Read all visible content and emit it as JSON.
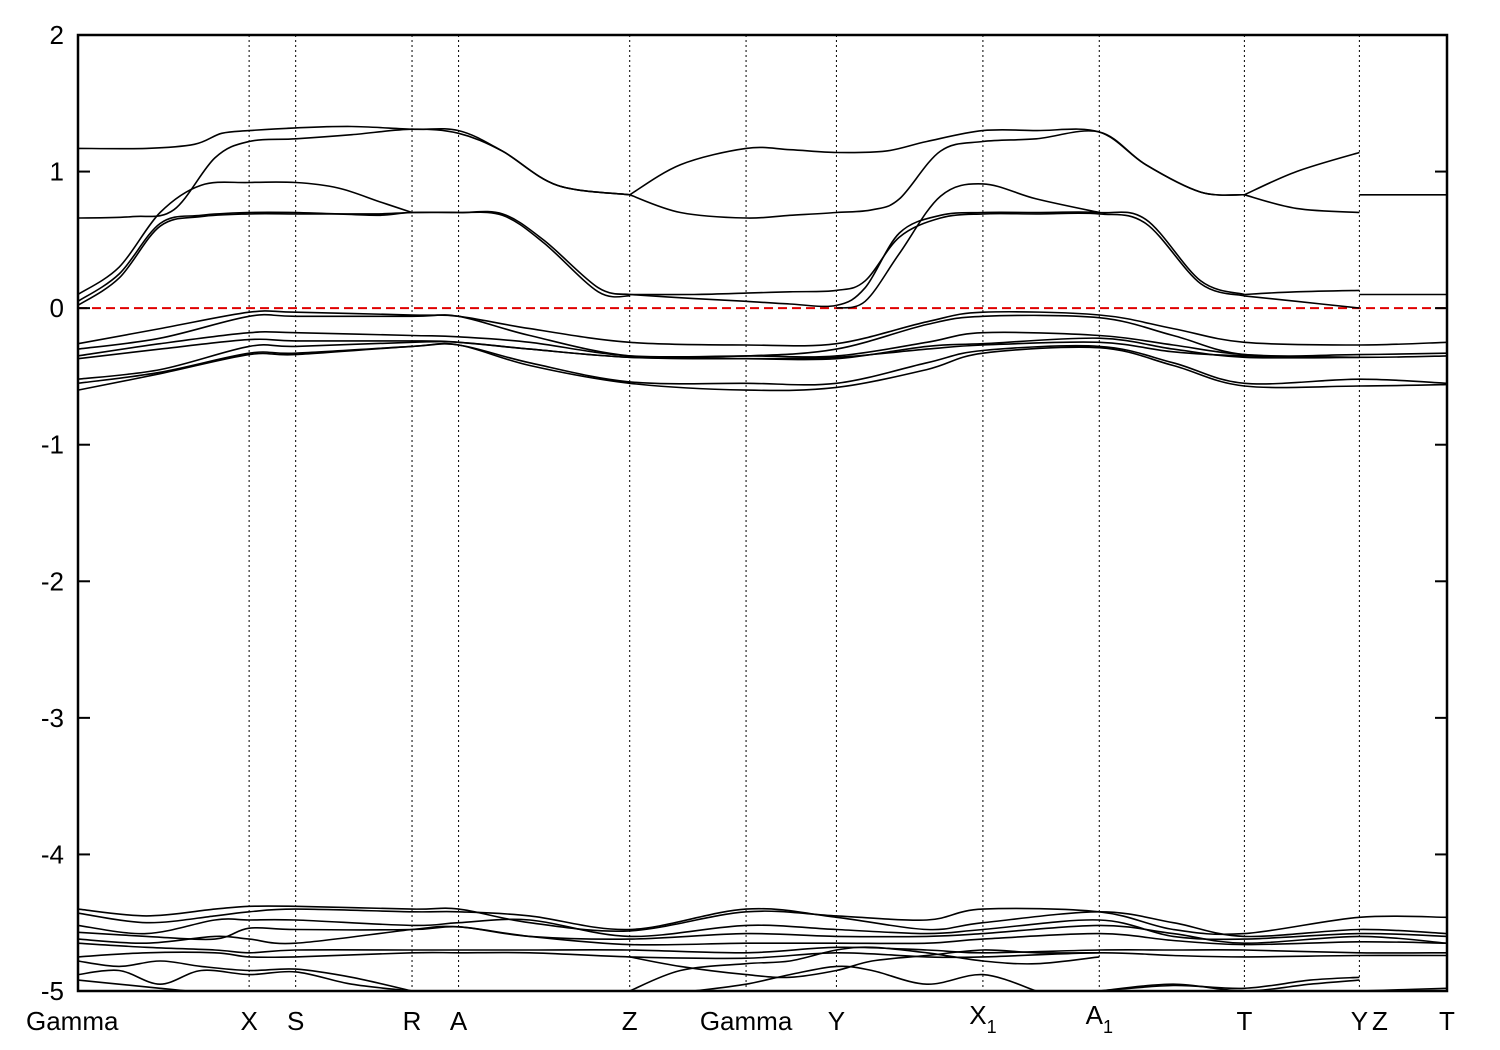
{
  "chart_data": {
    "type": "line",
    "title": "",
    "xlabel": "",
    "ylabel": "",
    "ylim": [
      -5,
      2
    ],
    "yticks": [
      2,
      1,
      0,
      -1,
      -2,
      -3,
      -4,
      -5
    ],
    "ytick_labels": [
      "2",
      "1",
      "0",
      "-1",
      "-2",
      "-3",
      "-4",
      "-5"
    ],
    "grid": false,
    "legend": "none",
    "fermi_level": {
      "y": 0,
      "color": "#e00000",
      "style": "dashed"
    },
    "band_color": "#000000",
    "kpoints": [
      {
        "label": "Gamma",
        "sub": "",
        "x": 0.0,
        "divider": false
      },
      {
        "label": "X",
        "sub": "",
        "x": 1.25,
        "divider": true
      },
      {
        "label": "S",
        "sub": "",
        "x": 1.59,
        "divider": true
      },
      {
        "label": "R",
        "sub": "",
        "x": 2.44,
        "divider": true
      },
      {
        "label": "A",
        "sub": "",
        "x": 2.78,
        "divider": true
      },
      {
        "label": "Z",
        "sub": "",
        "x": 4.03,
        "divider": true
      },
      {
        "label": "Gamma",
        "sub": "",
        "x": 4.88,
        "divider": true
      },
      {
        "label": "Y",
        "sub": "",
        "x": 5.54,
        "divider": true
      },
      {
        "label": "X",
        "sub": "1",
        "x": 6.61,
        "divider": true
      },
      {
        "label": "A",
        "sub": "1",
        "x": 7.46,
        "divider": true
      },
      {
        "label": "T",
        "sub": "",
        "x": 8.52,
        "divider": true
      },
      {
        "label": "Y",
        "sub": "",
        "x": 9.36,
        "divider": true
      },
      {
        "label": "Z",
        "sub": "",
        "x": 9.51,
        "divider": false
      },
      {
        "label": "T",
        "sub": "",
        "x": 10.0,
        "divider": false
      }
    ],
    "xlim": [
      0,
      10
    ],
    "series": [
      {
        "x": [
          0,
          0.5,
          0.85,
          1.05,
          1.25,
          1.59,
          2.0,
          2.44,
          2.78,
          3.1,
          3.5,
          4.03
        ],
        "y": [
          1.17,
          1.17,
          1.2,
          1.28,
          1.3,
          1.32,
          1.33,
          1.31,
          1.3,
          1.15,
          0.9,
          0.83
        ]
      },
      {
        "x": [
          0,
          0.4,
          0.7,
          1.0,
          1.25,
          1.59,
          2.0,
          2.44,
          2.78,
          3.1,
          3.5,
          4.03
        ],
        "y": [
          0.66,
          0.67,
          0.72,
          1.1,
          1.22,
          1.24,
          1.27,
          1.31,
          1.28,
          1.15,
          0.9,
          0.83
        ]
      },
      {
        "x": [
          0,
          0.3,
          0.6,
          0.9,
          1.25,
          1.59,
          1.9,
          2.2,
          2.44
        ],
        "y": [
          0.1,
          0.3,
          0.7,
          0.9,
          0.92,
          0.92,
          0.88,
          0.78,
          0.7
        ]
      },
      {
        "x": [
          0,
          0.3,
          0.6,
          0.9,
          1.25,
          1.59,
          1.9,
          2.2,
          2.44,
          2.78,
          3.1,
          3.4,
          3.8,
          4.03
        ],
        "y": [
          0.05,
          0.25,
          0.62,
          0.68,
          0.7,
          0.7,
          0.69,
          0.68,
          0.7,
          0.7,
          0.69,
          0.5,
          0.15,
          0.1
        ]
      },
      {
        "x": [
          0,
          0.3,
          0.6,
          0.9,
          1.25,
          1.59,
          1.9,
          2.2,
          2.44,
          2.78,
          3.1,
          3.4,
          3.8,
          4.03
        ],
        "y": [
          0.02,
          0.22,
          0.6,
          0.67,
          0.69,
          0.69,
          0.69,
          0.69,
          0.7,
          0.7,
          0.68,
          0.48,
          0.12,
          0.09
        ]
      },
      {
        "x": [
          4.03,
          4.4,
          4.88,
          5.2,
          5.54,
          5.9,
          6.2,
          6.61,
          7.0,
          7.46,
          7.8,
          8.2,
          8.52
        ],
        "y": [
          0.83,
          1.05,
          1.17,
          1.16,
          1.14,
          1.15,
          1.22,
          1.3,
          1.3,
          1.29,
          1.05,
          0.85,
          0.83
        ]
      },
      {
        "x": [
          4.03,
          4.4,
          4.88,
          5.2,
          5.54,
          5.8,
          6.0,
          6.3,
          6.61,
          7.0,
          7.46,
          7.8,
          8.2,
          8.52
        ],
        "y": [
          0.83,
          0.7,
          0.66,
          0.68,
          0.7,
          0.72,
          0.8,
          1.15,
          1.22,
          1.24,
          1.29,
          1.05,
          0.85,
          0.83
        ]
      },
      {
        "x": [
          5.54,
          5.75,
          6.0,
          6.3,
          6.61,
          7.0,
          7.46
        ],
        "y": [
          0.0,
          0.05,
          0.4,
          0.82,
          0.91,
          0.8,
          0.7
        ]
      },
      {
        "x": [
          4.03,
          4.5,
          4.88,
          5.2,
          5.54,
          5.75,
          6.0,
          6.3,
          6.61,
          7.0,
          7.46,
          7.8,
          8.2,
          8.52
        ],
        "y": [
          0.1,
          0.07,
          0.05,
          0.03,
          0.02,
          0.15,
          0.55,
          0.68,
          0.7,
          0.7,
          0.7,
          0.65,
          0.2,
          0.1
        ]
      },
      {
        "x": [
          4.03,
          4.5,
          4.88,
          5.2,
          5.54,
          5.75,
          6.0,
          6.3,
          6.61,
          7.0,
          7.46,
          7.8,
          8.2,
          8.52
        ],
        "y": [
          0.1,
          0.1,
          0.11,
          0.12,
          0.13,
          0.2,
          0.52,
          0.66,
          0.69,
          0.69,
          0.69,
          0.62,
          0.18,
          0.09
        ]
      },
      {
        "x": [
          8.52,
          8.9,
          9.36
        ],
        "y": [
          0.83,
          1.0,
          1.14
        ]
      },
      {
        "x": [
          8.52,
          8.9,
          9.36
        ],
        "y": [
          0.83,
          0.73,
          0.7
        ]
      },
      {
        "x": [
          8.52,
          8.9,
          9.36
        ],
        "y": [
          0.1,
          0.12,
          0.13
        ]
      },
      {
        "x": [
          8.52,
          8.9,
          9.36
        ],
        "y": [
          0.09,
          0.05,
          0.0
        ]
      },
      {
        "x": [
          9.36,
          10.0
        ],
        "y": [
          0.83,
          0.83
        ]
      },
      {
        "x": [
          9.36,
          10.0
        ],
        "y": [
          0.1,
          0.1
        ]
      },
      {
        "x": [
          0,
          0.6,
          1.25,
          1.59,
          2.44,
          2.78,
          3.3,
          4.03,
          4.88,
          5.54,
          6.2,
          6.61,
          7.46,
          8.0,
          8.52,
          9.36,
          10.0
        ],
        "y": [
          -0.26,
          -0.15,
          -0.03,
          -0.03,
          -0.05,
          -0.06,
          -0.15,
          -0.25,
          -0.27,
          -0.26,
          -0.1,
          -0.03,
          -0.05,
          -0.15,
          -0.25,
          -0.27,
          -0.25
        ]
      },
      {
        "x": [
          0,
          0.6,
          1.25,
          1.59,
          2.44,
          2.78,
          3.3,
          4.03,
          4.88,
          5.54,
          6.2,
          6.61,
          7.46,
          8.0,
          8.52,
          9.36,
          10.0
        ],
        "y": [
          -0.3,
          -0.22,
          -0.06,
          -0.06,
          -0.06,
          -0.06,
          -0.2,
          -0.35,
          -0.35,
          -0.3,
          -0.12,
          -0.06,
          -0.07,
          -0.2,
          -0.34,
          -0.34,
          -0.33
        ]
      },
      {
        "x": [
          0,
          0.6,
          1.25,
          1.59,
          2.44,
          2.78,
          3.3,
          4.03,
          4.88,
          5.54,
          6.2,
          6.61,
          7.46,
          8.0,
          8.52,
          9.36,
          10.0
        ],
        "y": [
          -0.35,
          -0.26,
          -0.18,
          -0.18,
          -0.2,
          -0.21,
          -0.25,
          -0.35,
          -0.35,
          -0.35,
          -0.25,
          -0.18,
          -0.2,
          -0.27,
          -0.34,
          -0.36,
          -0.35
        ]
      },
      {
        "x": [
          0,
          0.6,
          1.25,
          1.59,
          2.44,
          2.78,
          3.3,
          4.03,
          4.88,
          5.54,
          6.2,
          6.61,
          7.46,
          8.0,
          8.52,
          9.36
        ],
        "y": [
          -0.37,
          -0.3,
          -0.23,
          -0.24,
          -0.24,
          -0.25,
          -0.3,
          -0.36,
          -0.37,
          -0.37,
          -0.28,
          -0.26,
          -0.22,
          -0.3,
          -0.36,
          -0.36
        ]
      },
      {
        "x": [
          0,
          0.6,
          1.25,
          1.59,
          2.44,
          2.78,
          3.3,
          4.03,
          4.88,
          5.54,
          6.2,
          6.61,
          7.46,
          8.0,
          8.52,
          9.36
        ],
        "y": [
          -0.52,
          -0.45,
          -0.28,
          -0.28,
          -0.25,
          -0.25,
          -0.3,
          -0.36,
          -0.37,
          -0.36,
          -0.3,
          -0.27,
          -0.25,
          -0.32,
          -0.35,
          -0.36
        ]
      },
      {
        "x": [
          0,
          0.6,
          1.25,
          1.59,
          2.44,
          2.78,
          3.3,
          4.03,
          4.88,
          5.54,
          6.2,
          6.61,
          7.46,
          8.0,
          8.52,
          9.36,
          10.0
        ],
        "y": [
          -0.55,
          -0.47,
          -0.33,
          -0.33,
          -0.28,
          -0.27,
          -0.4,
          -0.54,
          -0.55,
          -0.55,
          -0.4,
          -0.31,
          -0.28,
          -0.4,
          -0.55,
          -0.52,
          -0.55
        ]
      },
      {
        "x": [
          0,
          0.6,
          1.25,
          1.59,
          2.44,
          2.78,
          3.3,
          4.03,
          4.88,
          5.54,
          6.2,
          6.61,
          7.46,
          8.0,
          8.52,
          9.36,
          10.0
        ],
        "y": [
          -0.6,
          -0.48,
          -0.34,
          -0.34,
          -0.28,
          -0.27,
          -0.42,
          -0.55,
          -0.6,
          -0.58,
          -0.45,
          -0.33,
          -0.29,
          -0.42,
          -0.57,
          -0.57,
          -0.56
        ]
      },
      {
        "x": [
          0,
          0.5,
          1.0,
          1.25,
          1.59,
          2.44,
          2.78,
          3.3,
          4.03,
          4.88,
          5.54,
          6.2,
          6.61,
          7.46,
          8.0,
          8.52,
          9.36,
          10.0
        ],
        "y": [
          -4.4,
          -4.45,
          -4.4,
          -4.38,
          -4.38,
          -4.4,
          -4.4,
          -4.5,
          -4.56,
          -4.42,
          -4.45,
          -4.48,
          -4.4,
          -4.42,
          -4.55,
          -4.58,
          -4.46,
          -4.46
        ]
      },
      {
        "x": [
          0,
          0.5,
          1.0,
          1.25,
          1.59,
          2.44,
          2.78,
          3.3,
          4.03,
          4.88,
          5.54,
          6.2,
          6.61,
          7.46,
          8.0,
          8.52,
          9.36,
          10.0
        ],
        "y": [
          -4.43,
          -4.5,
          -4.45,
          -4.42,
          -4.4,
          -4.42,
          -4.42,
          -4.45,
          -4.55,
          -4.4,
          -4.46,
          -4.55,
          -4.5,
          -4.42,
          -4.5,
          -4.6,
          -4.55,
          -4.58
        ]
      },
      {
        "x": [
          0,
          0.5,
          1.0,
          1.25,
          1.59,
          2.44,
          2.78,
          3.3,
          4.03,
          4.88,
          5.54,
          6.2,
          6.61,
          7.46,
          8.0,
          8.52,
          9.36,
          10.0
        ],
        "y": [
          -4.52,
          -4.58,
          -4.48,
          -4.48,
          -4.48,
          -4.52,
          -4.5,
          -4.48,
          -4.6,
          -4.52,
          -4.55,
          -4.58,
          -4.55,
          -4.48,
          -4.6,
          -4.62,
          -4.58,
          -4.6
        ]
      },
      {
        "x": [
          0,
          0.5,
          1.0,
          1.25,
          1.59,
          2.44,
          2.78,
          3.3,
          4.03,
          4.88,
          5.54,
          6.2,
          6.61,
          7.46,
          8.0,
          8.52,
          9.36,
          10.0
        ],
        "y": [
          -4.57,
          -4.6,
          -4.62,
          -4.54,
          -4.55,
          -4.55,
          -4.53,
          -4.6,
          -4.62,
          -4.58,
          -4.6,
          -4.6,
          -4.58,
          -4.52,
          -4.58,
          -4.65,
          -4.6,
          -4.65
        ]
      },
      {
        "x": [
          0,
          0.5,
          1.0,
          1.25,
          1.59,
          2.44,
          2.78,
          3.3,
          4.03,
          4.88,
          5.54,
          6.2,
          6.61,
          7.46,
          8.0,
          8.52,
          9.36,
          10.0
        ],
        "y": [
          -4.62,
          -4.65,
          -4.6,
          -4.62,
          -4.65,
          -4.55,
          -4.53,
          -4.6,
          -4.66,
          -4.65,
          -4.65,
          -4.65,
          -4.62,
          -4.58,
          -4.63,
          -4.66,
          -4.64,
          -4.65
        ]
      },
      {
        "x": [
          0,
          0.5,
          1.0,
          1.25,
          1.59,
          2.44,
          2.78,
          3.3,
          4.03,
          4.88,
          5.54,
          6.2,
          6.61,
          7.46,
          8.0,
          8.52,
          9.36,
          10.0
        ],
        "y": [
          -4.65,
          -4.68,
          -4.7,
          -4.72,
          -4.7,
          -4.7,
          -4.7,
          -4.7,
          -4.7,
          -4.72,
          -4.68,
          -4.7,
          -4.72,
          -4.7,
          -4.7,
          -4.7,
          -4.72,
          -4.72
        ]
      },
      {
        "x": [
          0,
          0.5,
          1.0,
          1.25,
          1.59,
          2.44,
          2.78,
          3.3,
          4.03,
          4.88,
          5.54,
          6.2,
          6.61,
          7.46,
          8.0,
          8.52,
          9.36,
          10.0
        ],
        "y": [
          -4.75,
          -4.72,
          -4.72,
          -4.75,
          -4.75,
          -4.72,
          -4.72,
          -4.72,
          -4.75,
          -4.76,
          -4.72,
          -4.75,
          -4.75,
          -4.72,
          -4.74,
          -4.75,
          -4.74,
          -4.74
        ]
      },
      {
        "x": [
          0,
          0.3,
          0.6,
          0.9,
          1.25,
          1.59,
          2.0,
          2.44
        ],
        "y": [
          -4.78,
          -4.82,
          -4.78,
          -4.82,
          -4.85,
          -4.84,
          -4.9,
          -5.0
        ]
      },
      {
        "x": [
          0,
          0.3,
          0.6,
          0.9,
          1.25,
          1.59,
          2.0,
          2.44
        ],
        "y": [
          -4.88,
          -4.85,
          -4.95,
          -4.85,
          -4.88,
          -4.86,
          -4.95,
          -5.0
        ]
      },
      {
        "x": [
          0,
          0.3,
          0.6,
          0.8
        ],
        "y": [
          -4.92,
          -4.95,
          -4.98,
          -5.0
        ]
      },
      {
        "x": [
          4.03,
          4.4,
          4.88,
          5.2,
          5.54,
          5.8,
          6.2,
          6.61,
          7.0,
          7.46
        ],
        "y": [
          -5.0,
          -4.85,
          -4.8,
          -4.78,
          -4.7,
          -4.68,
          -4.72,
          -4.78,
          -4.8,
          -4.75
        ]
      },
      {
        "x": [
          4.03,
          4.4,
          4.88,
          5.2,
          5.54,
          5.8,
          6.2,
          6.61,
          7.0,
          7.46
        ],
        "y": [
          -4.75,
          -4.82,
          -4.88,
          -4.9,
          -4.85,
          -4.78,
          -4.74,
          -4.7,
          -4.72,
          -4.72
        ]
      },
      {
        "x": [
          4.5,
          4.88,
          5.2,
          5.54,
          5.8,
          6.2,
          6.61,
          7.0
        ],
        "y": [
          -5.0,
          -4.95,
          -4.88,
          -4.82,
          -4.85,
          -4.95,
          -4.88,
          -5.0
        ]
      },
      {
        "x": [
          7.46,
          8.0,
          8.52,
          9.0,
          9.36
        ],
        "y": [
          -5.0,
          -4.96,
          -4.98,
          -4.92,
          -4.9
        ]
      },
      {
        "x": [
          7.46,
          8.0,
          8.52,
          9.0,
          9.36
        ],
        "y": [
          -5.0,
          -4.95,
          -5.0,
          -4.95,
          -4.92
        ]
      },
      {
        "x": [
          9.36,
          10.0
        ],
        "y": [
          -5.0,
          -4.98
        ]
      }
    ]
  }
}
